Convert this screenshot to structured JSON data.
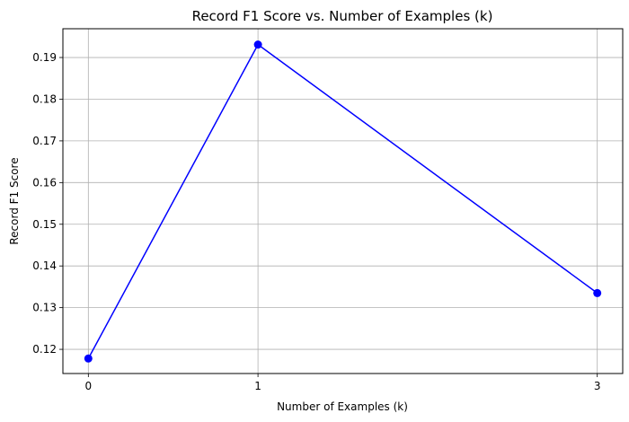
{
  "chart_data": {
    "type": "line",
    "title": "Record F1 Score vs. Number of Examples (k)",
    "xlabel": "Number of Examples (k)",
    "ylabel": "Record F1 Score",
    "x": [
      0,
      1,
      3
    ],
    "xticks": [
      "0",
      "1",
      "3"
    ],
    "yticks": [
      "0.12",
      "0.13",
      "0.14",
      "0.15",
      "0.16",
      "0.17",
      "0.18",
      "0.19"
    ],
    "xlim": [
      -0.15,
      3.15
    ],
    "ylim": [
      0.1142,
      0.1969
    ],
    "grid": true,
    "series": [
      {
        "values": [
          0.1178,
          0.1931,
          0.1335
        ],
        "color": "#0000ff",
        "marker": "circle"
      }
    ]
  }
}
